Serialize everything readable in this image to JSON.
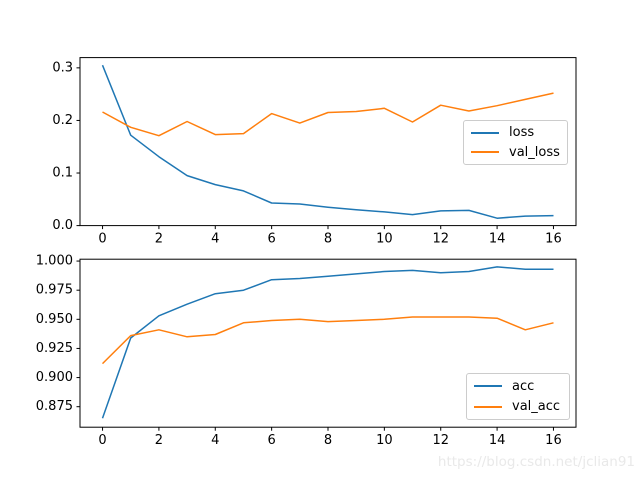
{
  "figure": {
    "background": "#ffffff"
  },
  "colors": {
    "blue": "#1f77b4",
    "orange": "#ff7f0e",
    "spine": "#000000",
    "legend_border": "#cccccc",
    "tick_label": "#000000"
  },
  "watermark": {
    "text": "https://blog.csdn.net/jclian91",
    "color": "#e9e9e9"
  },
  "chart_data": [
    {
      "type": "line",
      "title": "",
      "xlabel": "",
      "ylabel": "",
      "grid": false,
      "x": [
        0,
        1,
        2,
        3,
        4,
        5,
        6,
        7,
        8,
        9,
        10,
        11,
        12,
        13,
        14,
        15,
        16
      ],
      "series": [
        {
          "name": "loss",
          "color": "#1f77b4",
          "values": [
            0.305,
            0.172,
            0.131,
            0.095,
            0.078,
            0.066,
            0.043,
            0.041,
            0.035,
            0.03,
            0.026,
            0.021,
            0.028,
            0.029,
            0.014,
            0.018,
            0.019
          ]
        },
        {
          "name": "val_loss",
          "color": "#ff7f0e",
          "values": [
            0.216,
            0.187,
            0.171,
            0.198,
            0.173,
            0.175,
            0.213,
            0.195,
            0.215,
            0.217,
            0.223,
            0.197,
            0.229,
            0.218,
            0.228,
            0.24,
            0.252
          ]
        }
      ],
      "xlim": [
        -0.8,
        16.8
      ],
      "ylim": [
        0.0,
        0.3195
      ],
      "xtick_values": [
        0,
        2,
        4,
        6,
        8,
        10,
        12,
        14,
        16
      ],
      "xtick_labels": [
        "0",
        "2",
        "4",
        "6",
        "8",
        "10",
        "12",
        "14",
        "16"
      ],
      "ytick_values": [
        0.0,
        0.1,
        0.2,
        0.3
      ],
      "ytick_labels": [
        "0.0",
        "0.1",
        "0.2",
        "0.3"
      ],
      "legend_position": "center right"
    },
    {
      "type": "line",
      "title": "",
      "xlabel": "",
      "ylabel": "",
      "grid": false,
      "x": [
        0,
        1,
        2,
        3,
        4,
        5,
        6,
        7,
        8,
        9,
        10,
        11,
        12,
        13,
        14,
        15,
        16
      ],
      "series": [
        {
          "name": "acc",
          "color": "#1f77b4",
          "values": [
            0.865,
            0.934,
            0.953,
            0.963,
            0.972,
            0.975,
            0.984,
            0.985,
            0.987,
            0.989,
            0.991,
            0.992,
            0.99,
            0.991,
            0.995,
            0.993,
            0.993
          ]
        },
        {
          "name": "val_acc",
          "color": "#ff7f0e",
          "values": [
            0.912,
            0.936,
            0.941,
            0.935,
            0.937,
            0.947,
            0.949,
            0.95,
            0.948,
            0.949,
            0.95,
            0.952,
            0.952,
            0.952,
            0.951,
            0.941,
            0.947
          ]
        }
      ],
      "xlim": [
        -0.8,
        16.8
      ],
      "ylim": [
        0.8574,
        1.0016
      ],
      "xtick_values": [
        0,
        2,
        4,
        6,
        8,
        10,
        12,
        14,
        16
      ],
      "xtick_labels": [
        "0",
        "2",
        "4",
        "6",
        "8",
        "10",
        "12",
        "14",
        "16"
      ],
      "ytick_values": [
        0.875,
        0.9,
        0.925,
        0.95,
        0.975,
        1.0
      ],
      "ytick_labels": [
        "0.875",
        "0.900",
        "0.925",
        "0.950",
        "0.975",
        "1.000"
      ],
      "legend_position": "lower right"
    }
  ]
}
